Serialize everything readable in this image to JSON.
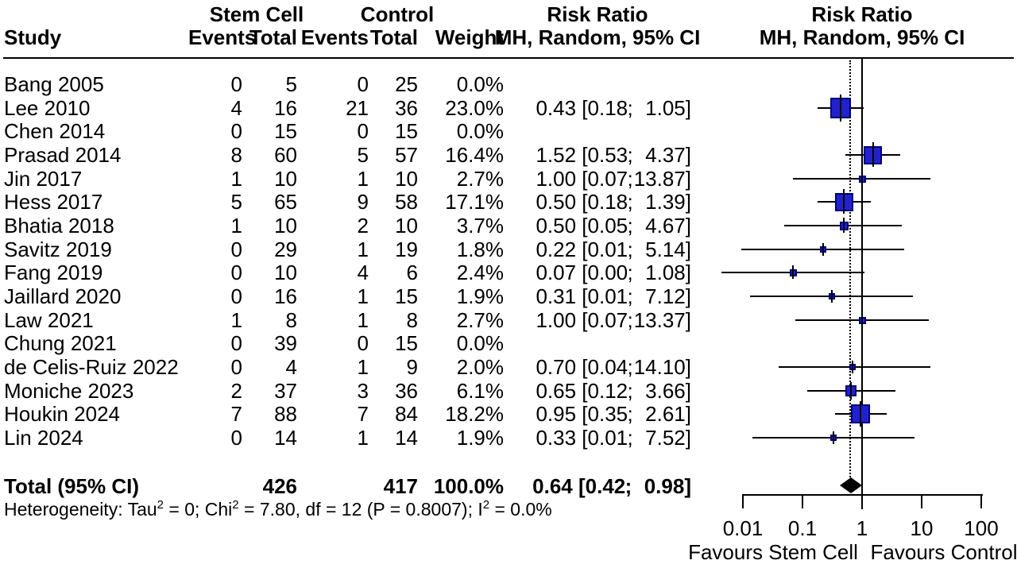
{
  "header": {
    "study": "Study",
    "group_treatment": "Stem Cell",
    "group_control": "Control",
    "col_events": "Events",
    "col_total": "Total",
    "col_weight": "Weight",
    "rr_title": "Risk Ratio",
    "rr_subtitle": "MH, Random, 95% CI"
  },
  "total_row": {
    "label": "Total (95% CI)",
    "total_treatment": "426",
    "total_control": "417",
    "weight": "100.0%",
    "rr": "0.64",
    "ci_low": "0.42",
    "ci_high": "0.98",
    "bracket_open": " [",
    "separator": ";",
    "bracket_close": "]"
  },
  "heterogeneity": {
    "part1": "Heterogeneity: Tau",
    "sup1": "2",
    "part2": " = 0; Chi",
    "sup2": "2",
    "part3": " = 7.80, df = 12 (P = 0.8007); I",
    "sup3": "2",
    "part4": " = 0.0%"
  },
  "axis": {
    "tick_labels": [
      "0.01",
      "0.1",
      "1",
      "10",
      "100"
    ],
    "tick_values": [
      0.01,
      0.1,
      1,
      10,
      100
    ],
    "favours_left": "Favours Stem Cell",
    "favours_right": "Favours Control"
  },
  "colors": {
    "square_fill": "#2222CC",
    "square_border": "#000080",
    "line": "#000000",
    "diamond": "#000000"
  },
  "chart_data": {
    "type": "scatter",
    "subtype": "forest-plot",
    "effect_measure": "Risk Ratio, MH, Random, 95% CI",
    "x_scale": "log",
    "xlim": [
      0.01,
      100
    ],
    "x_ticks": [
      0.01,
      0.1,
      1,
      10,
      100
    ],
    "null_line": 1,
    "pooled_line": 0.64,
    "favours": [
      "Favours Stem Cell",
      "Favours Control"
    ],
    "studies": [
      {
        "name": "Bang 2005",
        "events_tx": 0,
        "total_tx": 5,
        "events_ctrl": 0,
        "total_ctrl": 25,
        "weight_value": 0.0,
        "weight_label": "0.0%",
        "rr": null,
        "rr_label": null,
        "ci_low_label": null,
        "ci_high_label": null,
        "plot_low": null,
        "plot_high": null
      },
      {
        "name": "Lee 2010",
        "events_tx": 4,
        "total_tx": 16,
        "events_ctrl": 21,
        "total_ctrl": 36,
        "weight_value": 23.0,
        "weight_label": "23.0%",
        "rr": 0.43,
        "rr_label": "0.43",
        "ci_low_label": "0.18",
        "ci_high_label": "1.05",
        "plot_low": 0.18,
        "plot_high": 1.05
      },
      {
        "name": "Chen 2014",
        "events_tx": 0,
        "total_tx": 15,
        "events_ctrl": 0,
        "total_ctrl": 15,
        "weight_value": 0.0,
        "weight_label": "0.0%",
        "rr": null,
        "rr_label": null,
        "ci_low_label": null,
        "ci_high_label": null,
        "plot_low": null,
        "plot_high": null
      },
      {
        "name": "Prasad 2014",
        "events_tx": 8,
        "total_tx": 60,
        "events_ctrl": 5,
        "total_ctrl": 57,
        "weight_value": 16.4,
        "weight_label": "16.4%",
        "rr": 1.52,
        "rr_label": "1.52",
        "ci_low_label": "0.53",
        "ci_high_label": "4.37",
        "plot_low": 0.53,
        "plot_high": 4.37
      },
      {
        "name": "Jin 2017",
        "events_tx": 1,
        "total_tx": 10,
        "events_ctrl": 1,
        "total_ctrl": 10,
        "weight_value": 2.7,
        "weight_label": "2.7%",
        "rr": 1.0,
        "rr_label": "1.00",
        "ci_low_label": "0.07",
        "ci_high_label": "13.87",
        "plot_low": 0.07,
        "plot_high": 13.87
      },
      {
        "name": "Hess 2017",
        "events_tx": 5,
        "total_tx": 65,
        "events_ctrl": 9,
        "total_ctrl": 58,
        "weight_value": 17.1,
        "weight_label": "17.1%",
        "rr": 0.5,
        "rr_label": "0.50",
        "ci_low_label": "0.18",
        "ci_high_label": "1.39",
        "plot_low": 0.18,
        "plot_high": 1.39
      },
      {
        "name": "Bhatia 2018",
        "events_tx": 1,
        "total_tx": 10,
        "events_ctrl": 2,
        "total_ctrl": 10,
        "weight_value": 3.7,
        "weight_label": "3.7%",
        "rr": 0.5,
        "rr_label": "0.50",
        "ci_low_label": "0.05",
        "ci_high_label": "4.67",
        "plot_low": 0.05,
        "plot_high": 4.67
      },
      {
        "name": "Savitz 2019",
        "events_tx": 0,
        "total_tx": 29,
        "events_ctrl": 1,
        "total_ctrl": 19,
        "weight_value": 1.8,
        "weight_label": "1.8%",
        "rr": 0.22,
        "rr_label": "0.22",
        "ci_low_label": "0.01",
        "ci_high_label": "5.14",
        "plot_low": 0.0095,
        "plot_high": 5.14
      },
      {
        "name": "Fang 2019",
        "events_tx": 0,
        "total_tx": 10,
        "events_ctrl": 4,
        "total_ctrl": 6,
        "weight_value": 2.4,
        "weight_label": "2.4%",
        "rr": 0.07,
        "rr_label": "0.07",
        "ci_low_label": "0.00",
        "ci_high_label": "1.08",
        "plot_low": 0.0044,
        "plot_high": 1.08
      },
      {
        "name": "Jaillard 2020",
        "events_tx": 0,
        "total_tx": 16,
        "events_ctrl": 1,
        "total_ctrl": 15,
        "weight_value": 1.9,
        "weight_label": "1.9%",
        "rr": 0.31,
        "rr_label": "0.31",
        "ci_low_label": "0.01",
        "ci_high_label": "7.12",
        "plot_low": 0.013,
        "plot_high": 7.12
      },
      {
        "name": "Law 2021",
        "events_tx": 1,
        "total_tx": 8,
        "events_ctrl": 1,
        "total_ctrl": 8,
        "weight_value": 2.7,
        "weight_label": "2.7%",
        "rr": 1.0,
        "rr_label": "1.00",
        "ci_low_label": "0.07",
        "ci_high_label": "13.37",
        "plot_low": 0.075,
        "plot_high": 13.37
      },
      {
        "name": "Chung 2021",
        "events_tx": 0,
        "total_tx": 39,
        "events_ctrl": 0,
        "total_ctrl": 15,
        "weight_value": 0.0,
        "weight_label": "0.0%",
        "rr": null,
        "rr_label": null,
        "ci_low_label": null,
        "ci_high_label": null,
        "plot_low": null,
        "plot_high": null
      },
      {
        "name": "de Celis-Ruiz 2022",
        "events_tx": 0,
        "total_tx": 4,
        "events_ctrl": 1,
        "total_ctrl": 9,
        "weight_value": 2.0,
        "weight_label": "2.0%",
        "rr": 0.7,
        "rr_label": "0.70",
        "ci_low_label": "0.04",
        "ci_high_label": "14.10",
        "plot_low": 0.04,
        "plot_high": 14.1
      },
      {
        "name": "Moniche 2023",
        "events_tx": 2,
        "total_tx": 37,
        "events_ctrl": 3,
        "total_ctrl": 36,
        "weight_value": 6.1,
        "weight_label": "6.1%",
        "rr": 0.65,
        "rr_label": "0.65",
        "ci_low_label": "0.12",
        "ci_high_label": "3.66",
        "plot_low": 0.12,
        "plot_high": 3.66
      },
      {
        "name": "Houkin 2024",
        "events_tx": 7,
        "total_tx": 88,
        "events_ctrl": 7,
        "total_ctrl": 84,
        "weight_value": 18.2,
        "weight_label": "18.2%",
        "rr": 0.95,
        "rr_label": "0.95",
        "ci_low_label": "0.35",
        "ci_high_label": "2.61",
        "plot_low": 0.35,
        "plot_high": 2.61
      },
      {
        "name": "Lin 2024",
        "events_tx": 0,
        "total_tx": 14,
        "events_ctrl": 1,
        "total_ctrl": 14,
        "weight_value": 1.9,
        "weight_label": "1.9%",
        "rr": 0.33,
        "rr_label": "0.33",
        "ci_low_label": "0.01",
        "ci_high_label": "7.52",
        "plot_low": 0.0145,
        "plot_high": 7.52
      }
    ],
    "total": {
      "rr": 0.64,
      "ci_low": 0.42,
      "ci_high": 0.98,
      "total_tx": 426,
      "total_ctrl": 417,
      "weight_label": "100.0%"
    },
    "heterogeneity_text": "Heterogeneity: Tau2 = 0; Chi2 = 7.80, df = 12 (P = 0.8007); I2 = 0.0%"
  }
}
